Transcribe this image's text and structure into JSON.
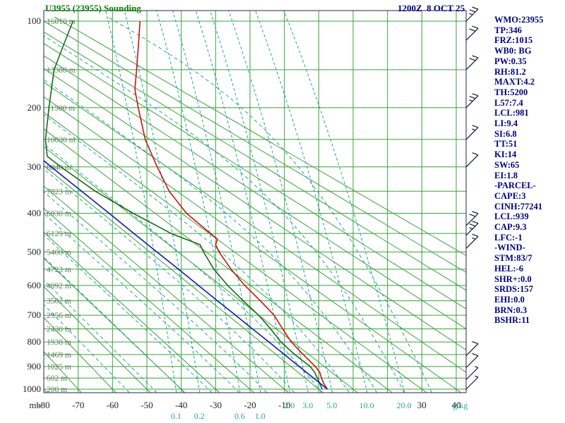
{
  "header": {
    "title": "U3955 (23955) Sounding",
    "datetime": "1200Z  8 OCT 25"
  },
  "indices_panel": {
    "lines": [
      "WMO:23955",
      "TP:346",
      "FRZ:1015",
      "WB0: BG",
      "PW:0.35",
      "RH:81.2",
      "MAXT:4.2",
      "TH:5200",
      "L57:7.4",
      "LCL:981",
      "LI:9.4",
      "SI:6.8",
      "TT:51",
      "KI:14",
      "SW:65",
      "EI:1.8",
      "-PARCEL-",
      "CAPE:3",
      "CINH:77241",
      "LCL:939",
      "CAP:9.3",
      "LFC:-1",
      "-WIND-",
      "STM:83/7",
      "HEL:-6",
      "SHR+:0.0",
      "SRDS:157",
      "EHI:0.0",
      "BRN:0.3",
      "BSHR:11"
    ]
  },
  "colors": {
    "title_green": "#008000",
    "navy_text": "#000080",
    "grid_green": "#3aa13a",
    "mixing_teal": "#2aa0a0",
    "axis_text": "#222222",
    "height_text": "#5f8060",
    "border": "#26264d",
    "trace_red": "#cc1111",
    "trace_green": "#166b16",
    "trace_blue": "#1515b5",
    "barb": "#1a1a33"
  },
  "chart_data": {
    "type": "line",
    "variant": "stuve-sounding-diagram",
    "title": "U3955 (23955) Sounding",
    "timestamp": "1200Z  8 OCT 25",
    "pressure_axis": {
      "unit": "mb",
      "top_mb": 100,
      "bottom_mb": 1000,
      "isobar_step_mb": 50,
      "labeled_ticks": [
        100,
        200,
        300,
        400,
        500,
        600,
        700,
        800,
        900,
        1000
      ]
    },
    "temperature_axis": {
      "unit": "degC",
      "min": -80,
      "max": 40,
      "isotherm_step": 10,
      "visible_labels": [
        -80,
        -70,
        -60,
        -50,
        -40,
        -30,
        -20,
        -10,
        30,
        40
      ]
    },
    "dry_adiabats_theta_c": {
      "min": -80,
      "max": 110,
      "step": 10
    },
    "moist_adiabats_thetaw_c": [
      -56,
      -48,
      -40,
      -32,
      -24,
      -16,
      -8,
      0,
      8,
      16,
      24,
      32
    ],
    "mixing_ratio_gkg": {
      "values": [
        0.1,
        0.2,
        0.6,
        1.0,
        2.0,
        3.0,
        5.0,
        10.0,
        20.0
      ],
      "label_row1": [
        2.0,
        3.0,
        5.0,
        10.0,
        20.0
      ],
      "label_row2": [
        0.1,
        0.2,
        0.6,
        1.0
      ],
      "unit_label": "g/kg"
    },
    "height_labels": [
      {
        "p": 100,
        "label": "16010 m"
      },
      {
        "p": 150,
        "label": "13380 m"
      },
      {
        "p": 200,
        "label": "11500 m"
      },
      {
        "p": 250,
        "label": "10030 m"
      },
      {
        "p": 300,
        "label": "8840 m"
      },
      {
        "p": 350,
        "label": "7823 m"
      },
      {
        "p": 400,
        "label": "6930 m"
      },
      {
        "p": 450,
        "label": "6129 m"
      },
      {
        "p": 500,
        "label": "5400 m"
      },
      {
        "p": 550,
        "label": "4723 m"
      },
      {
        "p": 600,
        "label": "4092 m"
      },
      {
        "p": 650,
        "label": "3502 m"
      },
      {
        "p": 700,
        "label": "2956 m"
      },
      {
        "p": 750,
        "label": "2430 m"
      },
      {
        "p": 800,
        "label": "1938 m"
      },
      {
        "p": 850,
        "label": "1469 m"
      },
      {
        "p": 900,
        "label": "1025 m"
      },
      {
        "p": 950,
        "label": "602 m"
      },
      {
        "p": 1000,
        "label": "200 m"
      }
    ],
    "series": [
      {
        "name": "temperature",
        "color": "#cc1111",
        "points": [
          [
            1000,
            2.5
          ],
          [
            975,
            1.5
          ],
          [
            950,
            0.8
          ],
          [
            925,
            0.3
          ],
          [
            900,
            -1.0
          ],
          [
            850,
            -4.5
          ],
          [
            800,
            -8.0
          ],
          [
            750,
            -10.5
          ],
          [
            700,
            -13.0
          ],
          [
            650,
            -17.0
          ],
          [
            600,
            -21.5
          ],
          [
            550,
            -25.5
          ],
          [
            500,
            -29.0
          ],
          [
            480,
            -30.0
          ],
          [
            465,
            -29.5
          ],
          [
            450,
            -31.5
          ],
          [
            400,
            -38.5
          ],
          [
            350,
            -43.5
          ],
          [
            300,
            -47.0
          ],
          [
            250,
            -50.5
          ],
          [
            200,
            -52.5
          ],
          [
            175,
            -53.5
          ],
          [
            150,
            -53.0
          ],
          [
            125,
            -52.5
          ],
          [
            100,
            -52.0
          ]
        ]
      },
      {
        "name": "dewpoint",
        "color": "#166b16",
        "points": [
          [
            1000,
            1.0
          ],
          [
            975,
            0.3
          ],
          [
            950,
            -0.4
          ],
          [
            925,
            -1.2
          ],
          [
            900,
            -2.5
          ],
          [
            850,
            -7.0
          ],
          [
            800,
            -11.0
          ],
          [
            750,
            -14.0
          ],
          [
            700,
            -17.5
          ],
          [
            650,
            -22.0
          ],
          [
            600,
            -26.5
          ],
          [
            550,
            -30.5
          ],
          [
            500,
            -33.5
          ],
          [
            480,
            -34.5
          ],
          [
            450,
            -43.0
          ],
          [
            400,
            -54.0
          ],
          [
            350,
            -65.0
          ],
          [
            300,
            -75.0
          ],
          [
            280,
            -79.0
          ],
          [
            250,
            -79.5
          ],
          [
            200,
            -78.5
          ],
          [
            150,
            -77.0
          ],
          [
            125,
            -74.5
          ],
          [
            100,
            -71.5
          ]
        ]
      },
      {
        "name": "parcel",
        "color": "#1515b5",
        "points": [
          [
            1000,
            2.5
          ],
          [
            950,
            -1.5
          ],
          [
            900,
            -5.7
          ],
          [
            850,
            -10.0
          ],
          [
            800,
            -14.5
          ],
          [
            750,
            -19.3
          ],
          [
            700,
            -24.2
          ],
          [
            650,
            -29.5
          ],
          [
            600,
            -35.0
          ],
          [
            550,
            -40.8
          ],
          [
            500,
            -47.1
          ],
          [
            450,
            -53.8
          ],
          [
            400,
            -61.0
          ],
          [
            350,
            -69.0
          ],
          [
            300,
            -77.8
          ],
          [
            288,
            -80.0
          ]
        ]
      }
    ],
    "wind_barbs": {
      "direction_note": "staffs point toward upper-right (wind from NE quadrant)",
      "items": [
        {
          "p": 100,
          "spd": 25
        },
        {
          "p": 118,
          "spd": 20
        },
        {
          "p": 150,
          "spd": 20
        },
        {
          "p": 200,
          "spd": 25
        },
        {
          "p": 250,
          "spd": 15
        },
        {
          "p": 300,
          "spd": 10
        },
        {
          "p": 430,
          "spd": 20
        },
        {
          "p": 455,
          "spd": 25
        },
        {
          "p": 490,
          "spd": 15
        },
        {
          "p": 855,
          "spd": 10
        },
        {
          "p": 905,
          "spd": 10
        },
        {
          "p": 957,
          "spd": 5
        },
        {
          "p": 1000,
          "spd": 5
        }
      ]
    }
  }
}
